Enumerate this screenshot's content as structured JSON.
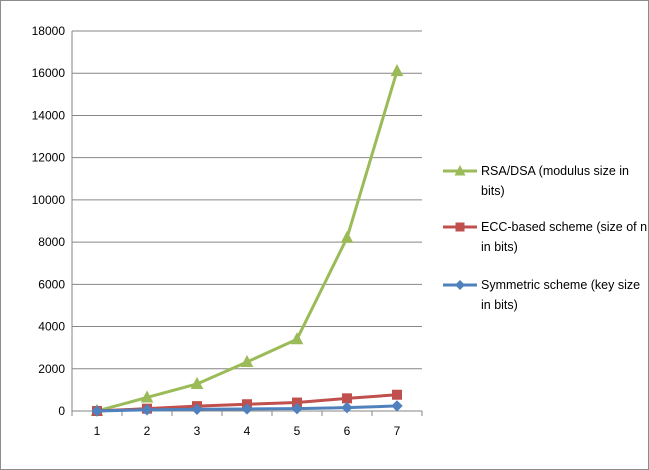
{
  "chart_data": {
    "type": "line",
    "categories": [
      "1",
      "2",
      "3",
      "4",
      "5",
      "6",
      "7"
    ],
    "ylim": [
      0,
      18000
    ],
    "yticks": [
      0,
      2000,
      4000,
      6000,
      8000,
      10000,
      12000,
      14000,
      16000,
      18000
    ],
    "grid": true,
    "legend_position": "right",
    "series": [
      {
        "name": "RSA/DSA (modulus size in bits)",
        "color": "#9bbb59",
        "marker": "triangle",
        "values": [
          0,
          640,
          1280,
          2320,
          3400,
          8200,
          16100
        ]
      },
      {
        "name": "ECC-based scheme (size of n in bits)",
        "color": "#c0504d",
        "marker": "square",
        "values": [
          0,
          110,
          230,
          320,
          400,
          600,
          770
        ]
      },
      {
        "name": "Symmetric scheme (key size in bits)",
        "color": "#4f81bd",
        "marker": "diamond",
        "values": [
          0,
          56,
          80,
          96,
          112,
          160,
          240
        ]
      }
    ]
  }
}
